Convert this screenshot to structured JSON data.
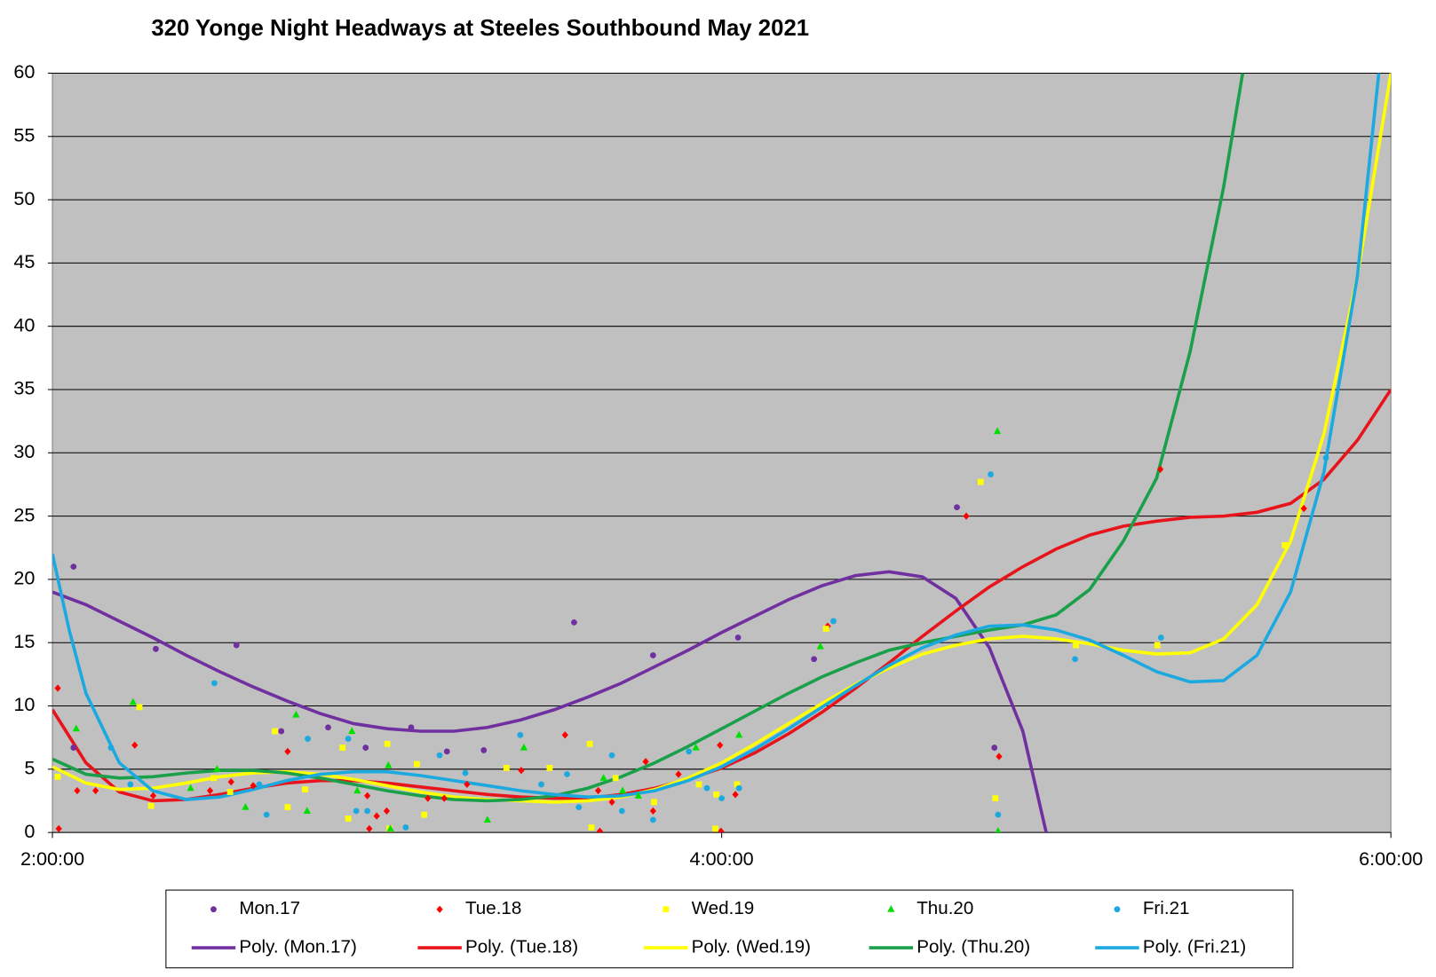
{
  "chart_data": {
    "type": "scatter",
    "title": "320 Yonge Night Headways at Steeles Southbound May 2021",
    "xlim": [
      2,
      6
    ],
    "xticks": [
      {
        "value": 2,
        "label": "2:00:00"
      },
      {
        "value": 4,
        "label": "4:00:00"
      },
      {
        "value": 6,
        "label": "6:00:00"
      }
    ],
    "ylim": [
      0,
      60
    ],
    "yticks": [
      0,
      5,
      10,
      15,
      20,
      25,
      30,
      35,
      40,
      45,
      50,
      55,
      60
    ],
    "grid": true,
    "legend": "bottom",
    "series": [
      {
        "name": "Mon.17",
        "color": "#7030a0",
        "marker": "circle",
        "x": [
          2.063,
          2.309,
          2.55,
          2.684,
          2.824,
          2.936,
          3.072,
          3.179,
          3.289,
          3.559,
          3.795,
          4.049,
          4.276,
          4.703,
          4.815,
          2.063
        ],
        "values": [
          21.0,
          14.5,
          14.8,
          8.0,
          8.3,
          6.7,
          8.3,
          6.4,
          6.5,
          16.6,
          14.0,
          15.4,
          13.7,
          25.7,
          6.7,
          6.7
        ]
      },
      {
        "name": "Tue.18",
        "color": "#ff0000",
        "marker": "diamond",
        "x": [
          2.016,
          2.019,
          2.074,
          2.129,
          2.246,
          2.301,
          2.471,
          2.534,
          2.6,
          2.703,
          2.941,
          2.947,
          2.969,
          2.999,
          3.122,
          3.171,
          3.239,
          3.401,
          3.532,
          3.631,
          3.636,
          3.672,
          3.773,
          3.795,
          3.871,
          3.995,
          3.998,
          4.041,
          4.317,
          4.731,
          4.829,
          5.311,
          5.74
        ],
        "values": [
          11.4,
          0.3,
          3.3,
          3.3,
          6.9,
          2.9,
          3.3,
          4.0,
          3.7,
          6.4,
          2.9,
          0.3,
          1.3,
          1.7,
          2.7,
          2.7,
          3.8,
          4.9,
          7.7,
          3.3,
          0.1,
          2.4,
          5.6,
          1.7,
          4.6,
          6.9,
          0.1,
          3.0,
          16.3,
          25.0,
          6.0,
          28.7,
          25.6
        ]
      },
      {
        "name": "Wed.19",
        "color": "#ffff00",
        "marker": "square",
        "x": [
          2.016,
          2.26,
          2.295,
          2.482,
          2.531,
          2.665,
          2.703,
          2.755,
          2.867,
          2.884,
          3.001,
          3.007,
          3.089,
          3.111,
          3.357,
          3.486,
          3.606,
          3.611,
          3.683,
          3.798,
          3.932,
          3.981,
          3.984,
          4.046,
          4.312,
          4.774,
          4.818,
          5.059,
          5.302,
          5.683
        ],
        "values": [
          4.4,
          9.9,
          2.1,
          4.3,
          3.2,
          8.0,
          2.0,
          3.4,
          6.7,
          1.1,
          7.0,
          0.3,
          5.4,
          1.4,
          5.1,
          5.1,
          7.0,
          0.4,
          4.3,
          2.4,
          3.8,
          0.3,
          3.0,
          3.8,
          16.1,
          27.7,
          2.7,
          14.8,
          14.8,
          22.7
        ]
      },
      {
        "name": "Thu.20",
        "color": "#00e000",
        "marker": "triangle",
        "x": [
          2.071,
          2.241,
          2.413,
          2.492,
          2.577,
          2.728,
          2.761,
          2.895,
          2.911,
          3.004,
          3.01,
          3.3,
          3.409,
          3.647,
          3.704,
          3.751,
          3.923,
          4.052,
          4.295,
          4.824,
          4.826
        ],
        "values": [
          8.2,
          10.3,
          3.5,
          5.0,
          2.0,
          9.3,
          1.7,
          8.0,
          3.3,
          5.3,
          0.3,
          1.0,
          6.7,
          4.3,
          3.3,
          2.9,
          6.7,
          7.7,
          14.7,
          31.7,
          0.1
        ]
      },
      {
        "name": "Fri.21",
        "color": "#1ca9e0",
        "marker": "circle",
        "x": [
          2.175,
          2.233,
          2.484,
          2.618,
          2.64,
          2.763,
          2.884,
          2.908,
          2.941,
          3.056,
          3.157,
          3.234,
          3.398,
          3.461,
          3.538,
          3.573,
          3.672,
          3.702,
          3.795,
          3.902,
          3.956,
          4.0,
          4.052,
          4.334,
          4.804,
          4.826,
          5.056,
          5.313,
          5.806
        ],
        "values": [
          6.7,
          3.8,
          11.8,
          3.8,
          1.4,
          7.4,
          7.4,
          1.7,
          1.7,
          0.4,
          6.1,
          4.7,
          7.7,
          3.8,
          4.6,
          2.0,
          6.1,
          1.7,
          1.0,
          6.4,
          3.5,
          2.7,
          3.5,
          16.7,
          28.3,
          1.4,
          13.7,
          15.4,
          29.6
        ]
      }
    ],
    "trendlines": [
      {
        "name": "Poly. (Mon.17)",
        "color": "#7030a0",
        "x": [
          2.0,
          2.1,
          2.2,
          2.3,
          2.4,
          2.5,
          2.6,
          2.7,
          2.8,
          2.9,
          3.0,
          3.1,
          3.2,
          3.3,
          3.4,
          3.5,
          3.6,
          3.7,
          3.8,
          3.9,
          4.0,
          4.1,
          4.2,
          4.3,
          4.4,
          4.5,
          4.6,
          4.7,
          4.8,
          4.9,
          4.97
        ],
        "values": [
          19.0,
          18.0,
          16.7,
          15.4,
          14.0,
          12.7,
          11.5,
          10.4,
          9.4,
          8.6,
          8.2,
          8.0,
          8.0,
          8.3,
          8.9,
          9.7,
          10.7,
          11.8,
          13.1,
          14.4,
          15.8,
          17.1,
          18.4,
          19.5,
          20.3,
          20.6,
          20.2,
          18.5,
          14.6,
          8.0,
          0.0
        ]
      },
      {
        "name": "Poly. (Tue.18)",
        "color": "#e8141b",
        "x": [
          2.0,
          2.1,
          2.2,
          2.3,
          2.4,
          2.5,
          2.6,
          2.7,
          2.8,
          2.9,
          3.0,
          3.1,
          3.2,
          3.3,
          3.4,
          3.5,
          3.6,
          3.7,
          3.8,
          3.9,
          4.0,
          4.1,
          4.2,
          4.3,
          4.4,
          4.5,
          4.6,
          4.7,
          4.8,
          4.9,
          5.0,
          5.1,
          5.2,
          5.3,
          5.4,
          5.5,
          5.6,
          5.7,
          5.8,
          5.9,
          6.0
        ],
        "values": [
          9.7,
          5.5,
          3.2,
          2.5,
          2.6,
          3.0,
          3.5,
          3.9,
          4.1,
          4.1,
          3.9,
          3.6,
          3.3,
          3.0,
          2.8,
          2.7,
          2.7,
          3.0,
          3.5,
          4.2,
          5.1,
          6.3,
          7.8,
          9.5,
          11.4,
          13.4,
          15.5,
          17.5,
          19.4,
          21.0,
          22.4,
          23.5,
          24.2,
          24.6,
          24.9,
          25.0,
          25.3,
          26.0,
          27.9,
          31.0,
          35.0
        ]
      },
      {
        "name": "Poly. (Wed.19)",
        "color": "#ffff00",
        "x": [
          2.0,
          2.1,
          2.2,
          2.3,
          2.4,
          2.5,
          2.6,
          2.7,
          2.8,
          2.9,
          3.0,
          3.1,
          3.2,
          3.3,
          3.4,
          3.5,
          3.6,
          3.7,
          3.8,
          3.9,
          4.0,
          4.1,
          4.2,
          4.3,
          4.4,
          4.5,
          4.6,
          4.7,
          4.8,
          4.9,
          5.0,
          5.1,
          5.2,
          5.3,
          5.4,
          5.5,
          5.6,
          5.7,
          5.8,
          5.9,
          6.0
        ],
        "values": [
          5.2,
          3.9,
          3.4,
          3.5,
          3.9,
          4.4,
          4.7,
          4.8,
          4.6,
          4.2,
          3.7,
          3.2,
          2.8,
          2.6,
          2.5,
          2.4,
          2.5,
          2.8,
          3.4,
          4.3,
          5.5,
          7.0,
          8.6,
          10.2,
          11.7,
          13.0,
          14.1,
          14.8,
          15.3,
          15.5,
          15.3,
          14.9,
          14.4,
          14.1,
          14.2,
          15.3,
          18.0,
          23.0,
          31.5,
          44.0,
          60.0
        ]
      },
      {
        "name": "Poly. (Thu.20)",
        "color": "#1aa04a",
        "x": [
          2.0,
          2.1,
          2.2,
          2.3,
          2.4,
          2.5,
          2.6,
          2.7,
          2.8,
          2.9,
          3.0,
          3.1,
          3.2,
          3.3,
          3.4,
          3.5,
          3.6,
          3.7,
          3.8,
          3.9,
          4.0,
          4.1,
          4.2,
          4.3,
          4.4,
          4.5,
          4.6,
          4.7,
          4.8,
          4.9,
          5.0,
          5.1,
          5.2,
          5.3,
          5.4,
          5.5,
          5.557
        ],
        "values": [
          5.8,
          4.6,
          4.3,
          4.4,
          4.7,
          4.9,
          4.9,
          4.7,
          4.3,
          3.8,
          3.3,
          2.9,
          2.6,
          2.5,
          2.6,
          2.9,
          3.5,
          4.4,
          5.5,
          6.8,
          8.2,
          9.6,
          11.0,
          12.3,
          13.4,
          14.4,
          15.0,
          15.5,
          16.0,
          16.4,
          17.2,
          19.2,
          23.0,
          28.0,
          38.0,
          51.0,
          60.0
        ]
      },
      {
        "name": "Poly. (Fri.21)",
        "color": "#1ca9e0",
        "x": [
          2.0,
          2.05,
          2.1,
          2.2,
          2.3,
          2.4,
          2.5,
          2.6,
          2.7,
          2.8,
          2.9,
          3.0,
          3.1,
          3.2,
          3.3,
          3.4,
          3.5,
          3.6,
          3.7,
          3.8,
          3.9,
          4.0,
          4.1,
          4.2,
          4.3,
          4.4,
          4.5,
          4.6,
          4.7,
          4.8,
          4.9,
          5.0,
          5.1,
          5.2,
          5.3,
          5.4,
          5.5,
          5.6,
          5.7,
          5.8,
          5.9,
          5.964
        ],
        "values": [
          22.0,
          16.0,
          11.0,
          5.5,
          3.3,
          2.6,
          2.8,
          3.4,
          4.1,
          4.6,
          4.8,
          4.8,
          4.5,
          4.1,
          3.7,
          3.3,
          3.0,
          2.8,
          2.9,
          3.3,
          4.1,
          5.2,
          6.6,
          8.2,
          9.9,
          11.6,
          13.2,
          14.6,
          15.6,
          16.3,
          16.4,
          16.0,
          15.2,
          14.0,
          12.7,
          11.9,
          12.0,
          14.0,
          19.0,
          28.5,
          44.0,
          60.0
        ]
      }
    ]
  }
}
